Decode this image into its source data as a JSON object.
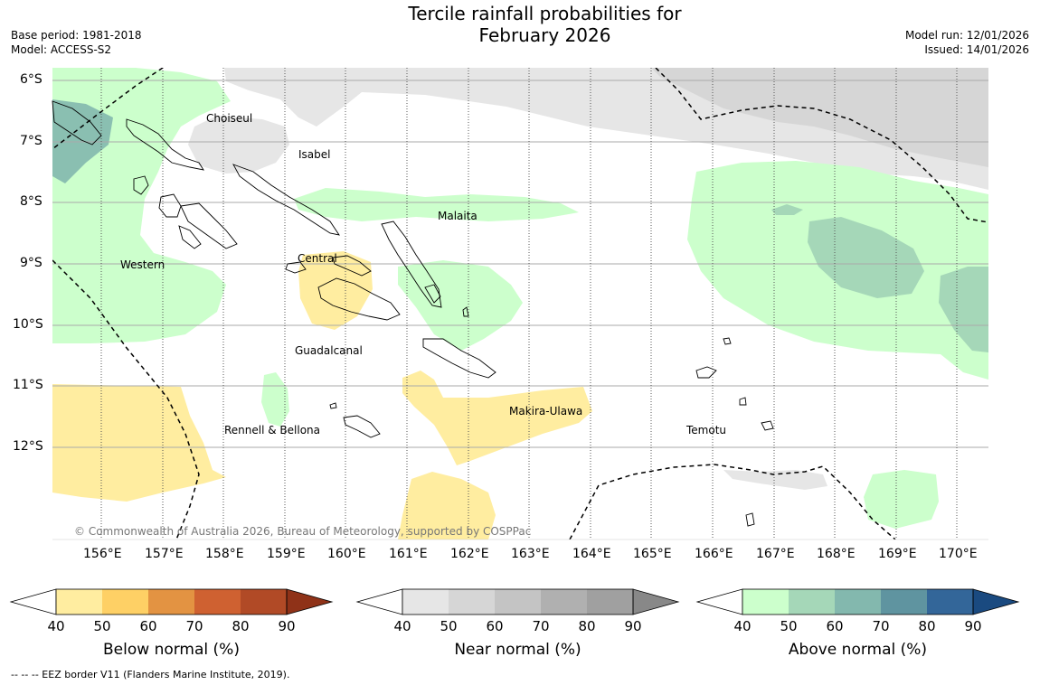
{
  "title_line1": "Tercile rainfall probabilities for",
  "title_line2": "February 2026",
  "meta_left": {
    "base_period": "Base period: 1981-2018",
    "model": "Model: ACCESS-S2"
  },
  "meta_right": {
    "model_run": "Model run: 12/01/2026",
    "issued": "Issued: 14/01/2026"
  },
  "latitude_labels": [
    "6°S",
    "7°S",
    "8°S",
    "9°S",
    "10°S",
    "11°S",
    "12°S"
  ],
  "longitude_labels": [
    "156°E",
    "157°E",
    "158°E",
    "159°E",
    "160°E",
    "161°E",
    "162°E",
    "163°E",
    "164°E",
    "165°E",
    "166°E",
    "167°E",
    "168°E",
    "169°E",
    "170°E"
  ],
  "province_labels": {
    "choiseul": "Choiseul",
    "isabel": "Isabel",
    "malaita": "Malaita",
    "western": "Western",
    "central": "Central",
    "guadalcanal": "Guadalcanal",
    "makira": "Makira-Ulawa",
    "rennell": "Rennell & Bellona",
    "temotu": "Temotu"
  },
  "copyright": "© Commonwealth of Australia 2026, Bureau of Meteorology, supported by COSPPac",
  "colorbars": [
    {
      "title": "Below normal (%)",
      "ticks": [
        "40",
        "50",
        "60",
        "70",
        "80",
        "90"
      ],
      "colors": [
        "#ffeda0",
        "#fed065",
        "#e39342",
        "#cf6131",
        "#b14a26",
        "#8f3218"
      ]
    },
    {
      "title": "Near normal (%)",
      "ticks": [
        "40",
        "50",
        "60",
        "70",
        "80",
        "90"
      ],
      "colors": [
        "#e6e6e6",
        "#d6d6d6",
        "#c4c4c4",
        "#b0b0b0",
        "#a0a0a0",
        "#888888"
      ]
    },
    {
      "title": "Above normal (%)",
      "ticks": [
        "40",
        "50",
        "60",
        "70",
        "80",
        "90"
      ],
      "colors": [
        "#ccffcc",
        "#a5d7b8",
        "#83b8ae",
        "#5f94a0",
        "#336699",
        "#1a4a80"
      ]
    }
  ],
  "legend_footnote": "--  --  -- EEZ border V11 (Flanders Marine Institute, 2019)."
}
